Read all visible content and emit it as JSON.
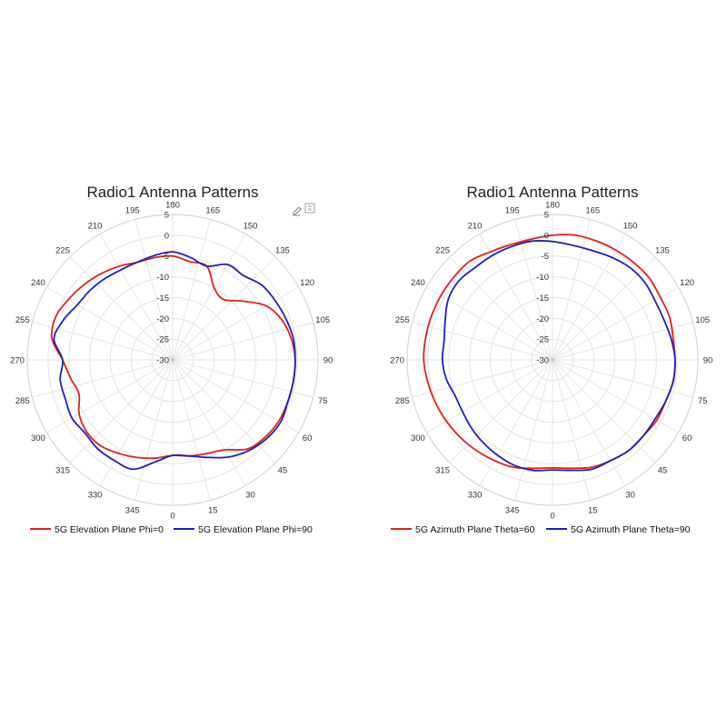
{
  "colors": {
    "red": "#e02020",
    "blue": "#2020c0"
  },
  "toolbar": {
    "edit_icon": "pencil-icon",
    "save_icon": "export-icon"
  },
  "chart_data": [
    {
      "type": "polar-line",
      "title": "Radio1 Antenna Patterns",
      "theta_ticks": [
        "0",
        "15",
        "30",
        "45",
        "60",
        "75",
        "90",
        "105",
        "120",
        "135",
        "150",
        "165",
        "180",
        "195",
        "210",
        "225",
        "240",
        "255",
        "270",
        "285",
        "300",
        "315",
        "330",
        "345"
      ],
      "theta_zero_location": "bottom",
      "theta_direction": "counterclockwise",
      "r_ticks": [
        "-30",
        "-25",
        "-20",
        "-15",
        "-10",
        "-5",
        "0",
        "5"
      ],
      "rlim": [
        -30,
        5
      ],
      "grid": true,
      "legend_position": "bottom",
      "series": [
        {
          "name": "5G Elevation Plane Phi=0",
          "color": "#e02020",
          "theta": [
            0,
            10,
            20,
            30,
            40,
            50,
            60,
            70,
            80,
            90,
            100,
            110,
            120,
            130,
            140,
            150,
            160,
            170,
            180,
            190,
            200,
            210,
            220,
            230,
            240,
            250,
            260,
            270,
            280,
            290,
            300,
            310,
            320,
            330,
            340,
            350
          ],
          "r": [
            -7,
            -6.5,
            -6,
            -5,
            -2,
            -1,
            -0.5,
            -0.5,
            -0.5,
            -0.5,
            -1,
            -2,
            -4,
            -8,
            -11,
            -10,
            -6,
            -6,
            -5,
            -5,
            -5,
            -4,
            -3,
            -2,
            -1,
            0,
            -0.5,
            -3.5,
            -5,
            -6,
            -4,
            -3,
            -3,
            -4,
            -5,
            -6
          ],
          "legend_label": "5G Elevation Plane Phi=0"
        },
        {
          "name": "5G Elevation Plane Phi=90",
          "color": "#2020c0",
          "theta": [
            0,
            10,
            20,
            30,
            40,
            50,
            60,
            70,
            80,
            90,
            100,
            110,
            120,
            130,
            140,
            150,
            160,
            170,
            180,
            190,
            200,
            210,
            220,
            230,
            240,
            250,
            260,
            270,
            280,
            290,
            300,
            310,
            320,
            330,
            340,
            350
          ],
          "r": [
            -7,
            -6.5,
            -5,
            -3,
            -1.5,
            -0.5,
            0,
            -0.5,
            -0.5,
            -0.5,
            -0.5,
            -1,
            -1.5,
            -2,
            -3.5,
            -3.5,
            -6,
            -5,
            -4,
            -4.5,
            -5,
            -5,
            -4.5,
            -4,
            -3.5,
            -2,
            -1,
            -3.5,
            -2.5,
            -2.5,
            -2,
            -2.5,
            -2,
            -2,
            -2,
            -5
          ],
          "legend_label": "5G Elevation Plane Phi=90"
        }
      ]
    },
    {
      "type": "polar-line",
      "title": "Radio1 Antenna Patterns",
      "theta_ticks": [
        "0",
        "15",
        "30",
        "45",
        "60",
        "75",
        "90",
        "105",
        "120",
        "135",
        "150",
        "165",
        "180",
        "195",
        "210",
        "225",
        "240",
        "255",
        "270",
        "285",
        "300",
        "315",
        "330",
        "345"
      ],
      "theta_zero_location": "bottom",
      "theta_direction": "counterclockwise",
      "r_ticks": [
        "-30",
        "-25",
        "-20",
        "-15",
        "-10",
        "-5",
        "0",
        "5"
      ],
      "rlim": [
        -30,
        5
      ],
      "grid": true,
      "legend_position": "bottom",
      "series": [
        {
          "name": "5G Azimuth Plane Theta=60",
          "color": "#e02020",
          "theta": [
            0,
            10,
            20,
            30,
            40,
            50,
            60,
            70,
            80,
            90,
            100,
            110,
            120,
            130,
            140,
            150,
            160,
            170,
            180,
            190,
            200,
            210,
            220,
            230,
            240,
            250,
            260,
            270,
            280,
            290,
            300,
            310,
            320,
            330,
            340,
            350
          ],
          "r": [
            -4,
            -3.5,
            -2.5,
            -2,
            -1.5,
            -1.5,
            -1,
            -1,
            -0.5,
            -0.5,
            -0.5,
            0,
            0,
            0.5,
            0.5,
            0.5,
            0.5,
            0.5,
            0,
            -0.5,
            -0.5,
            0,
            1,
            1,
            1,
            1,
            1,
            1,
            0.5,
            0,
            -0.5,
            -1,
            -1.5,
            -2,
            -2.5,
            -3.5
          ],
          "legend_label": "5G Azimuth Plane Theta=60"
        },
        {
          "name": "5G Azimuth Plane Theta=90",
          "color": "#2020c0",
          "theta": [
            0,
            10,
            20,
            30,
            40,
            50,
            60,
            70,
            80,
            90,
            100,
            110,
            120,
            130,
            140,
            150,
            160,
            170,
            180,
            190,
            200,
            210,
            220,
            230,
            240,
            250,
            260,
            270,
            280,
            290,
            300,
            310,
            320,
            330,
            340,
            350
          ],
          "r": [
            -3.5,
            -3,
            -2,
            -2,
            -1.5,
            -1.5,
            -1.5,
            -1,
            -0.5,
            -0.5,
            -1,
            -1.5,
            -1.5,
            -1,
            -1,
            -1.5,
            -2,
            -2,
            -1.5,
            -1,
            -1,
            -1,
            -1,
            -0.5,
            -1,
            -2.5,
            -3.5,
            -3.5,
            -4,
            -5,
            -5,
            -4.5,
            -4,
            -3.5,
            -3,
            -3
          ],
          "legend_label": "5G Azimuth Plane Theta=90"
        }
      ]
    }
  ]
}
